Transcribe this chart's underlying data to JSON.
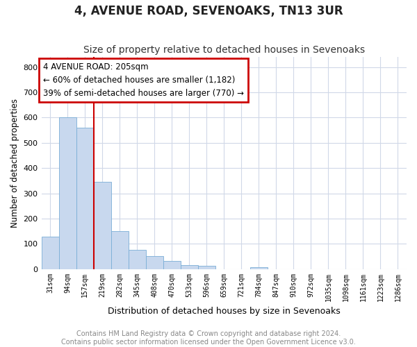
{
  "title": "4, AVENUE ROAD, SEVENOAKS, TN13 3UR",
  "subtitle": "Size of property relative to detached houses in Sevenoaks",
  "xlabel": "Distribution of detached houses by size in Sevenoaks",
  "ylabel": "Number of detached properties",
  "categories": [
    "31sqm",
    "94sqm",
    "157sqm",
    "219sqm",
    "282sqm",
    "345sqm",
    "408sqm",
    "470sqm",
    "533sqm",
    "596sqm",
    "659sqm",
    "721sqm",
    "784sqm",
    "847sqm",
    "910sqm",
    "972sqm",
    "1035sqm",
    "1098sqm",
    "1161sqm",
    "1223sqm",
    "1286sqm"
  ],
  "values": [
    128,
    600,
    560,
    345,
    150,
    75,
    52,
    32,
    15,
    13,
    0,
    0,
    8,
    0,
    0,
    0,
    0,
    0,
    0,
    0,
    0
  ],
  "bar_color": "#c8d8ee",
  "bar_edge_color": "#7aaed6",
  "vline_color": "#cc0000",
  "annotation_text": "4 AVENUE ROAD: 205sqm\n← 60% of detached houses are smaller (1,182)\n39% of semi-detached houses are larger (770) →",
  "annotation_box_color": "#cc0000",
  "plot_bg_color": "#ffffff",
  "fig_bg_color": "#ffffff",
  "grid_color": "#d0d8e8",
  "ylim": [
    0,
    840
  ],
  "yticks": [
    0,
    100,
    200,
    300,
    400,
    500,
    600,
    700,
    800
  ],
  "footer_text": "Contains HM Land Registry data © Crown copyright and database right 2024.\nContains public sector information licensed under the Open Government Licence v3.0.",
  "title_fontsize": 12,
  "subtitle_fontsize": 10,
  "footer_fontsize": 7
}
